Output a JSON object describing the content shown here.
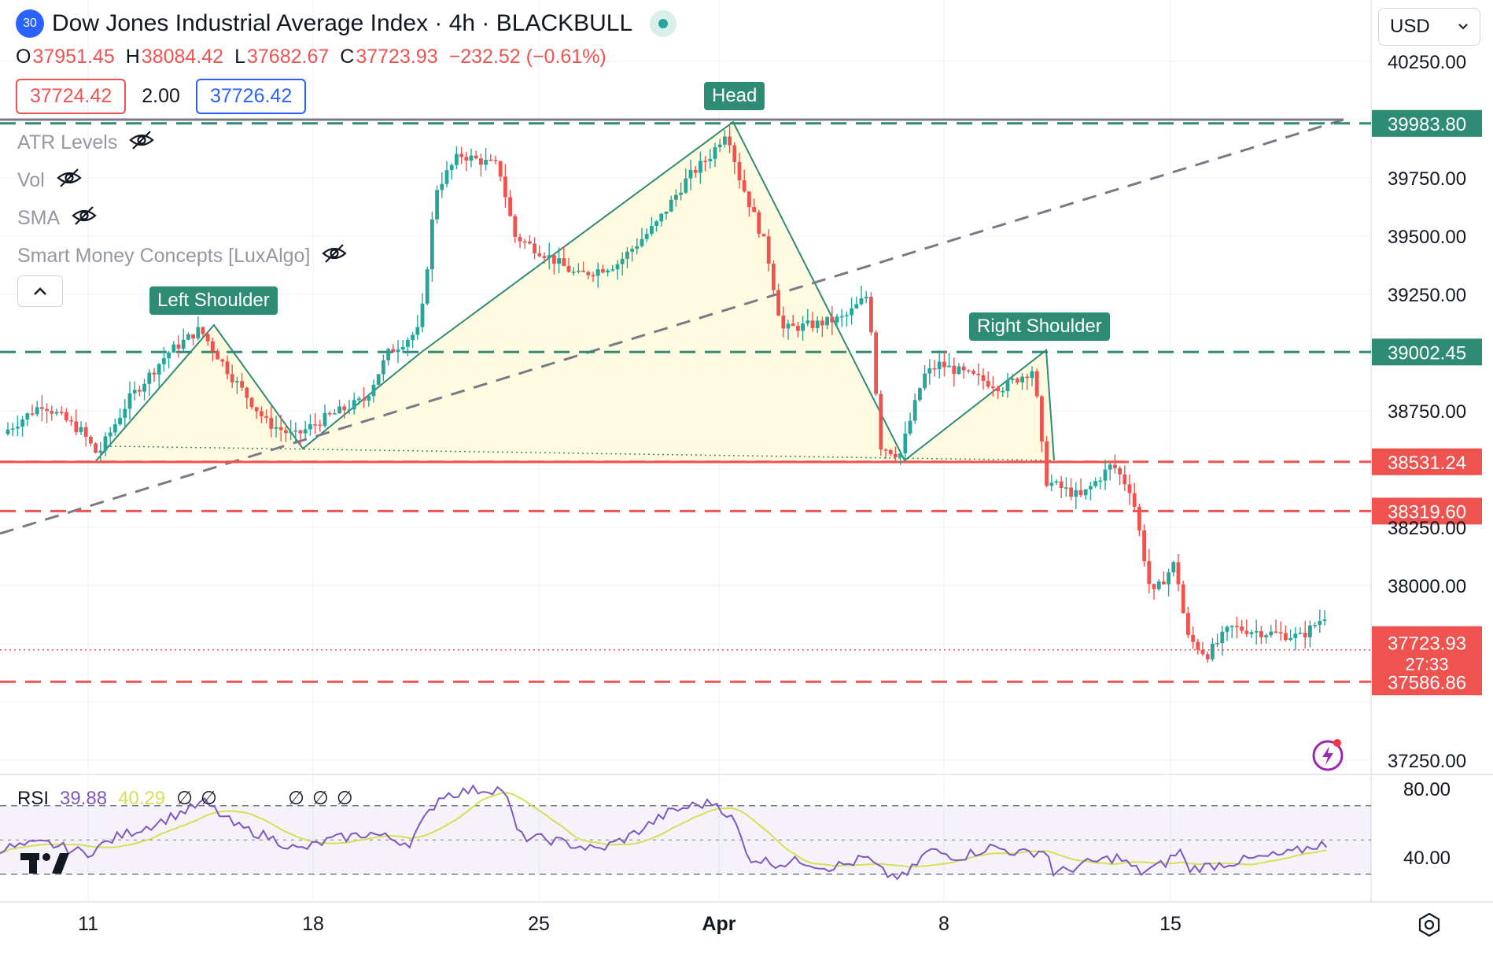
{
  "header": {
    "symbol_badge": "30",
    "title": "Dow Jones Industrial Average Index · 4h · BLACKBULL",
    "ohlc": [
      {
        "key": "O",
        "value": "37951.45"
      },
      {
        "key": "H",
        "value": "38084.42"
      },
      {
        "key": "L",
        "value": "37682.67"
      },
      {
        "key": "C",
        "value": "37723.93"
      }
    ],
    "change": "−232.52 (−0.61%)",
    "sell_price": "37724.42",
    "spread": "2.00",
    "buy_price": "37726.42"
  },
  "indicators": [
    "ATR Levels",
    "Vol",
    "SMA",
    "Smart Money Concepts [LuxAlgo]"
  ],
  "currency": "USD",
  "colors": {
    "up": "#26a69a",
    "down": "#ef5350",
    "pattern_line": "#2e8b74",
    "pattern_fill": "#fffbe0",
    "rsi": "#7e57c2",
    "rsi_ma": "#d4e157",
    "trendline": "#787b86"
  },
  "chart_data": {
    "type": "candlestick",
    "timeframe": "4h",
    "y_axis_ticks": [
      "40250.00",
      "39750.00",
      "39500.00",
      "39250.00",
      "38750.00",
      "38250.00",
      "38000.00",
      "37250.00"
    ],
    "x_axis_ticks": [
      "11",
      "18",
      "25",
      "Apr",
      "8",
      "15"
    ],
    "ylim": [
      37100,
      40450
    ],
    "last_price": 37723.93,
    "last_price_label": "37723.93",
    "countdown": "27:33",
    "levels": [
      {
        "value": 39983.8,
        "label": "39983.80",
        "style": "dashed",
        "color": "#2e8b74"
      },
      {
        "value": 39002.45,
        "label": "39002.45",
        "style": "dashed",
        "color": "#2e8b74"
      },
      {
        "value": 38531.24,
        "label": "38531.24",
        "style": "dashed",
        "color": "#ef5350"
      },
      {
        "value": 38319.6,
        "label": "38319.60",
        "style": "dashed",
        "color": "#ef5350"
      },
      {
        "value": 37586.86,
        "label": "37586.86",
        "style": "dashed",
        "color": "#ef5350"
      }
    ],
    "pattern_labels": [
      "Left Shoulder",
      "Head",
      "Right Shoulder"
    ],
    "rsi": {
      "name": "RSI",
      "value": "39.88",
      "ma_value": "40.29",
      "null_marks": [
        "∅",
        "∅",
        "∅",
        "∅",
        "∅"
      ],
      "axis_ticks": [
        "80.00",
        "40.00"
      ]
    }
  }
}
